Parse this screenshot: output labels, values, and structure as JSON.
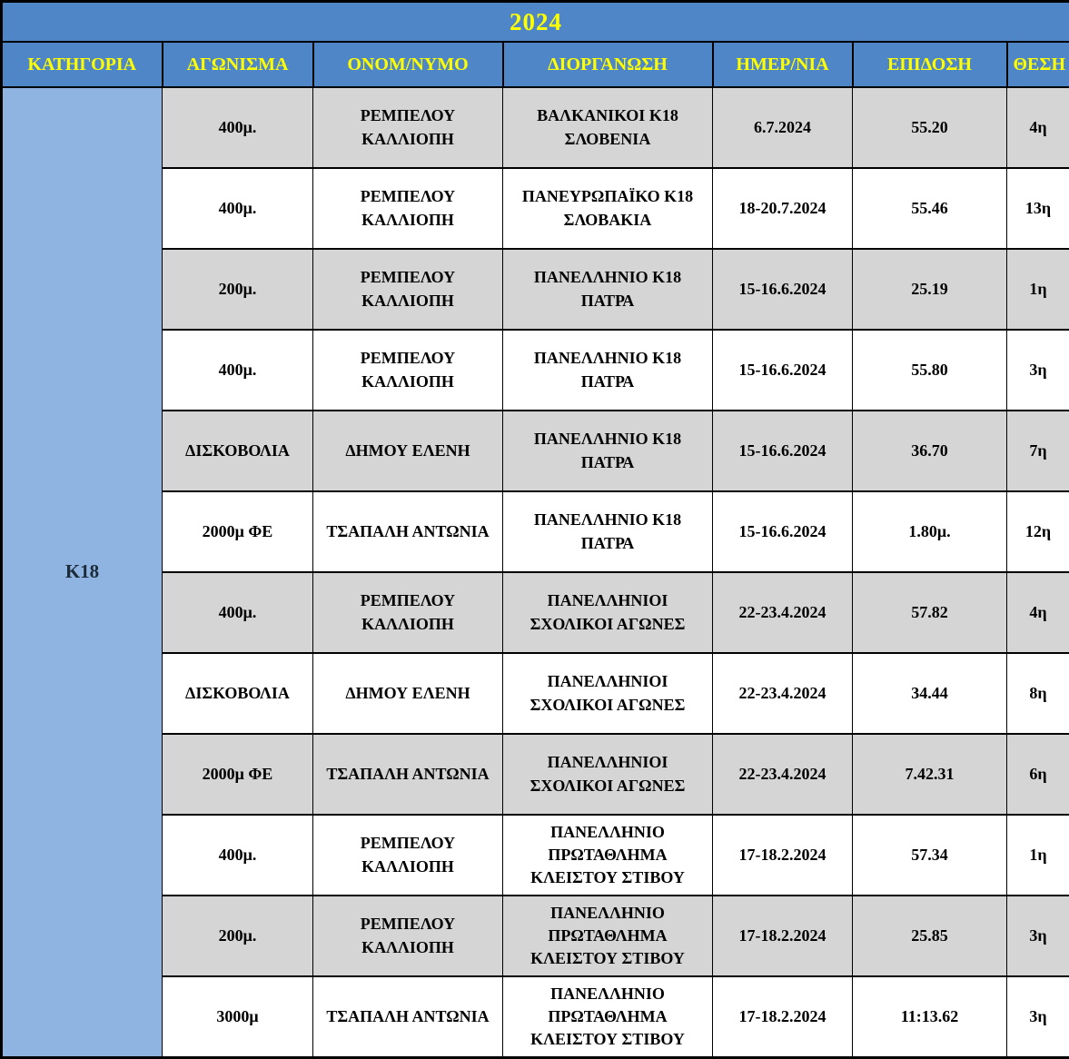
{
  "title": "2024",
  "category": "Κ18",
  "columns": [
    "ΚΑΤΗΓΟΡΙΑ",
    "ΑΓΩΝΙΣΜΑ",
    "ΟΝΟΜ/ΝΥΜΟ",
    "ΔΙΟΡΓΑΝΩΣΗ",
    "ΗΜΕΡ/ΝΙΑ",
    "ΕΠΙΔΟΣΗ",
    "ΘΕΣΗ"
  ],
  "rows": [
    {
      "event": "400μ.",
      "athlete": "ΡΕΜΠΕΛΟΥ\nΚΑΛΛΙΟΠΗ",
      "competition": "ΒΑΛΚΑΝΙΚΟΙ Κ18\nΣΛΟΒΕΝΙΑ",
      "date": "6.7.2024",
      "performance": "55.20",
      "position": "4η"
    },
    {
      "event": "400μ.",
      "athlete": "ΡΕΜΠΕΛΟΥ\nΚΑΛΛΙΟΠΗ",
      "competition": "ΠΑΝΕΥΡΩΠΑΪΚΟ Κ18\nΣΛΟΒΑΚΙΑ",
      "date": "18-20.7.2024",
      "performance": "55.46",
      "position": "13η"
    },
    {
      "event": "200μ.",
      "athlete": "ΡΕΜΠΕΛΟΥ\nΚΑΛΛΙΟΠΗ",
      "competition": "ΠΑΝΕΛΛΗΝΙΟ Κ18\nΠΑΤΡΑ",
      "date": "15-16.6.2024",
      "performance": "25.19",
      "position": "1η"
    },
    {
      "event": "400μ.",
      "athlete": "ΡΕΜΠΕΛΟΥ\nΚΑΛΛΙΟΠΗ",
      "competition": "ΠΑΝΕΛΛΗΝΙΟ Κ18\nΠΑΤΡΑ",
      "date": "15-16.6.2024",
      "performance": "55.80",
      "position": "3η"
    },
    {
      "event": "ΔΙΣΚΟΒΟΛΙΑ",
      "athlete": "ΔΗΜΟΥ ΕΛΕΝΗ",
      "competition": "ΠΑΝΕΛΛΗΝΙΟ Κ18\nΠΑΤΡΑ",
      "date": "15-16.6.2024",
      "performance": "36.70",
      "position": "7η"
    },
    {
      "event": "2000μ ΦΕ",
      "athlete": "ΤΣΑΠΑΛΗ ΑΝΤΩΝΙΑ",
      "competition": "ΠΑΝΕΛΛΗΝΙΟ Κ18\nΠΑΤΡΑ",
      "date": "15-16.6.2024",
      "performance": "1.80μ.",
      "position": "12η"
    },
    {
      "event": "400μ.",
      "athlete": "ΡΕΜΠΕΛΟΥ\nΚΑΛΛΙΟΠΗ",
      "competition": "ΠΑΝΕΛΛΗΝΙΟΙ\nΣΧΟΛΙΚΟΙ ΑΓΩΝΕΣ",
      "date": "22-23.4.2024",
      "performance": "57.82",
      "position": "4η"
    },
    {
      "event": "ΔΙΣΚΟΒΟΛΙΑ",
      "athlete": "ΔΗΜΟΥ ΕΛΕΝΗ",
      "competition": "ΠΑΝΕΛΛΗΝΙΟΙ\nΣΧΟΛΙΚΟΙ ΑΓΩΝΕΣ",
      "date": "22-23.4.2024",
      "performance": "34.44",
      "position": "8η"
    },
    {
      "event": "2000μ ΦΕ",
      "athlete": "ΤΣΑΠΑΛΗ ΑΝΤΩΝΙΑ",
      "competition": "ΠΑΝΕΛΛΗΝΙΟΙ\nΣΧΟΛΙΚΟΙ ΑΓΩΝΕΣ",
      "date": "22-23.4.2024",
      "performance": "7.42.31",
      "position": "6η"
    },
    {
      "event": "400μ.",
      "athlete": "ΡΕΜΠΕΛΟΥ\nΚΑΛΛΙΟΠΗ",
      "competition": "ΠΑΝΕΛΛΗΝΙΟ\nΠΡΩΤΑΘΛΗΜΑ\nΚΛΕΙΣΤΟΥ ΣΤΙΒΟΥ",
      "date": "17-18.2.2024",
      "performance": "57.34",
      "position": "1η"
    },
    {
      "event": "200μ.",
      "athlete": "ΡΕΜΠΕΛΟΥ\nΚΑΛΛΙΟΠΗ",
      "competition": "ΠΑΝΕΛΛΗΝΙΟ\nΠΡΩΤΑΘΛΗΜΑ\nΚΛΕΙΣΤΟΥ ΣΤΙΒΟΥ",
      "date": "17-18.2.2024",
      "performance": "25.85",
      "position": "3η"
    },
    {
      "event": "3000μ",
      "athlete": "ΤΣΑΠΑΛΗ ΑΝΤΩΝΙΑ",
      "competition": "ΠΑΝΕΛΛΗΝΙΟ\nΠΡΩΤΑΘΛΗΜΑ\nΚΛΕΙΣΤΟΥ ΣΤΙΒΟΥ",
      "date": "17-18.2.2024",
      "performance": "11:13.62",
      "position": "3η"
    }
  ],
  "colors": {
    "header_bg": "#4f86c8",
    "category_bg": "#8fb4e2",
    "alt_row_bg": "#d5d5d5",
    "header_text": "#ffff00",
    "cell_text": "#000000",
    "border": "#000000"
  }
}
